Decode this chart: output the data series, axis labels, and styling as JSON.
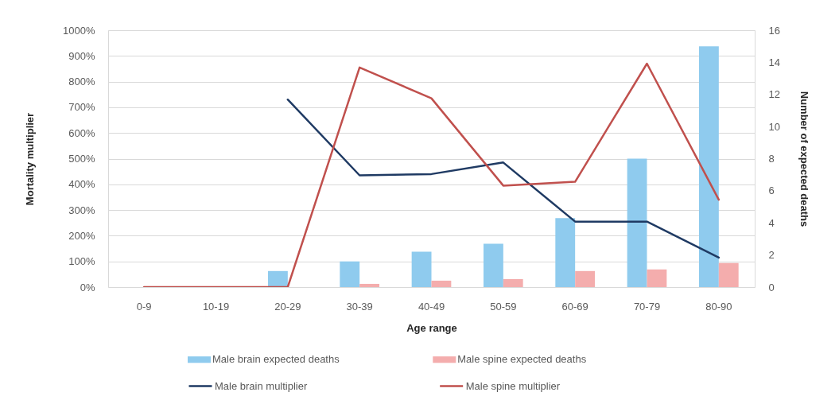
{
  "chart_data": {
    "type": "bar",
    "xlabel": "Age range",
    "ylabel": "Mortality multiplier",
    "y2label": "Number of expected deaths",
    "categories": [
      "0-9",
      "10-19",
      "20-29",
      "30-39",
      "40-49",
      "50-59",
      "60-69",
      "70-79",
      "80-90"
    ],
    "series": [
      {
        "name": "Male brain expected deaths",
        "axis": "y2",
        "color": "#8fcbee",
        "values": [
          0,
          0,
          1,
          1.6,
          2.2,
          2.7,
          4.3,
          8,
          15
        ]
      },
      {
        "name": "Male spine expected deaths",
        "axis": "y2",
        "color": "#f4adad",
        "values": [
          0,
          0,
          0,
          0.2,
          0.4,
          0.5,
          1,
          1.1,
          1.5
        ]
      },
      {
        "name": "Male brain multiplier",
        "type": "line",
        "color": "#1f3a63",
        "values": [
          null,
          null,
          730,
          435,
          440,
          485,
          255,
          255,
          115
        ]
      },
      {
        "name": "Male spine multiplier",
        "type": "line",
        "color": "#c0504d",
        "values": [
          0,
          0,
          0,
          855,
          735,
          395,
          410,
          870,
          340
        ]
      }
    ],
    "ylim": [
      0,
      1000
    ],
    "yticks": [
      {
        "value": 0,
        "label": "0%"
      },
      {
        "value": 100,
        "label": "100%"
      },
      {
        "value": 200,
        "label": "200%"
      },
      {
        "value": 300,
        "label": "300%"
      },
      {
        "value": 400,
        "label": "400%"
      },
      {
        "value": 500,
        "label": "500%"
      },
      {
        "value": 600,
        "label": "600%"
      },
      {
        "value": 700,
        "label": "700%"
      },
      {
        "value": 800,
        "label": "800%"
      },
      {
        "value": 900,
        "label": "900%"
      },
      {
        "value": 1000,
        "label": "1000%"
      }
    ],
    "y2lim": [
      0,
      16
    ],
    "y2ticks": [
      0,
      2,
      4,
      6,
      8,
      10,
      12,
      14,
      16
    ],
    "grid": "y",
    "legend": "bottom",
    "marker": "none",
    "line_style": "solid"
  }
}
